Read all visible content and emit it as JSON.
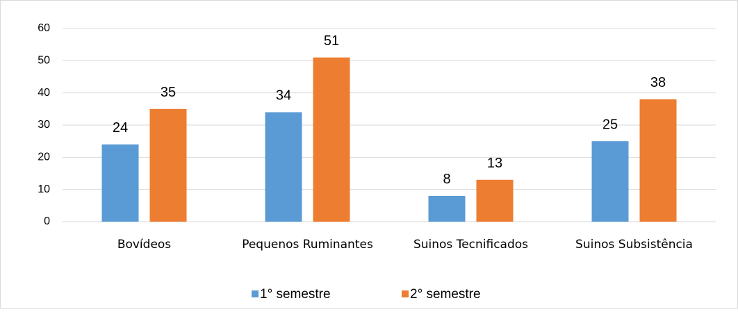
{
  "chart_data": {
    "type": "bar",
    "categories": [
      "Bovídeos",
      "Pequenos Ruminantes",
      "Suinos Tecnificados",
      "Suinos Subsistência"
    ],
    "series": [
      {
        "name": "1° semestre",
        "color": "#5b9bd5",
        "values": [
          24,
          34,
          8,
          25
        ]
      },
      {
        "name": "2° semestre",
        "color": "#ed7d31",
        "values": [
          35,
          51,
          13,
          38
        ]
      }
    ],
    "ylim": [
      0,
      60
    ],
    "yticks": [
      0,
      10,
      20,
      30,
      40,
      50,
      60
    ],
    "grid": true,
    "legend": "bottom"
  }
}
